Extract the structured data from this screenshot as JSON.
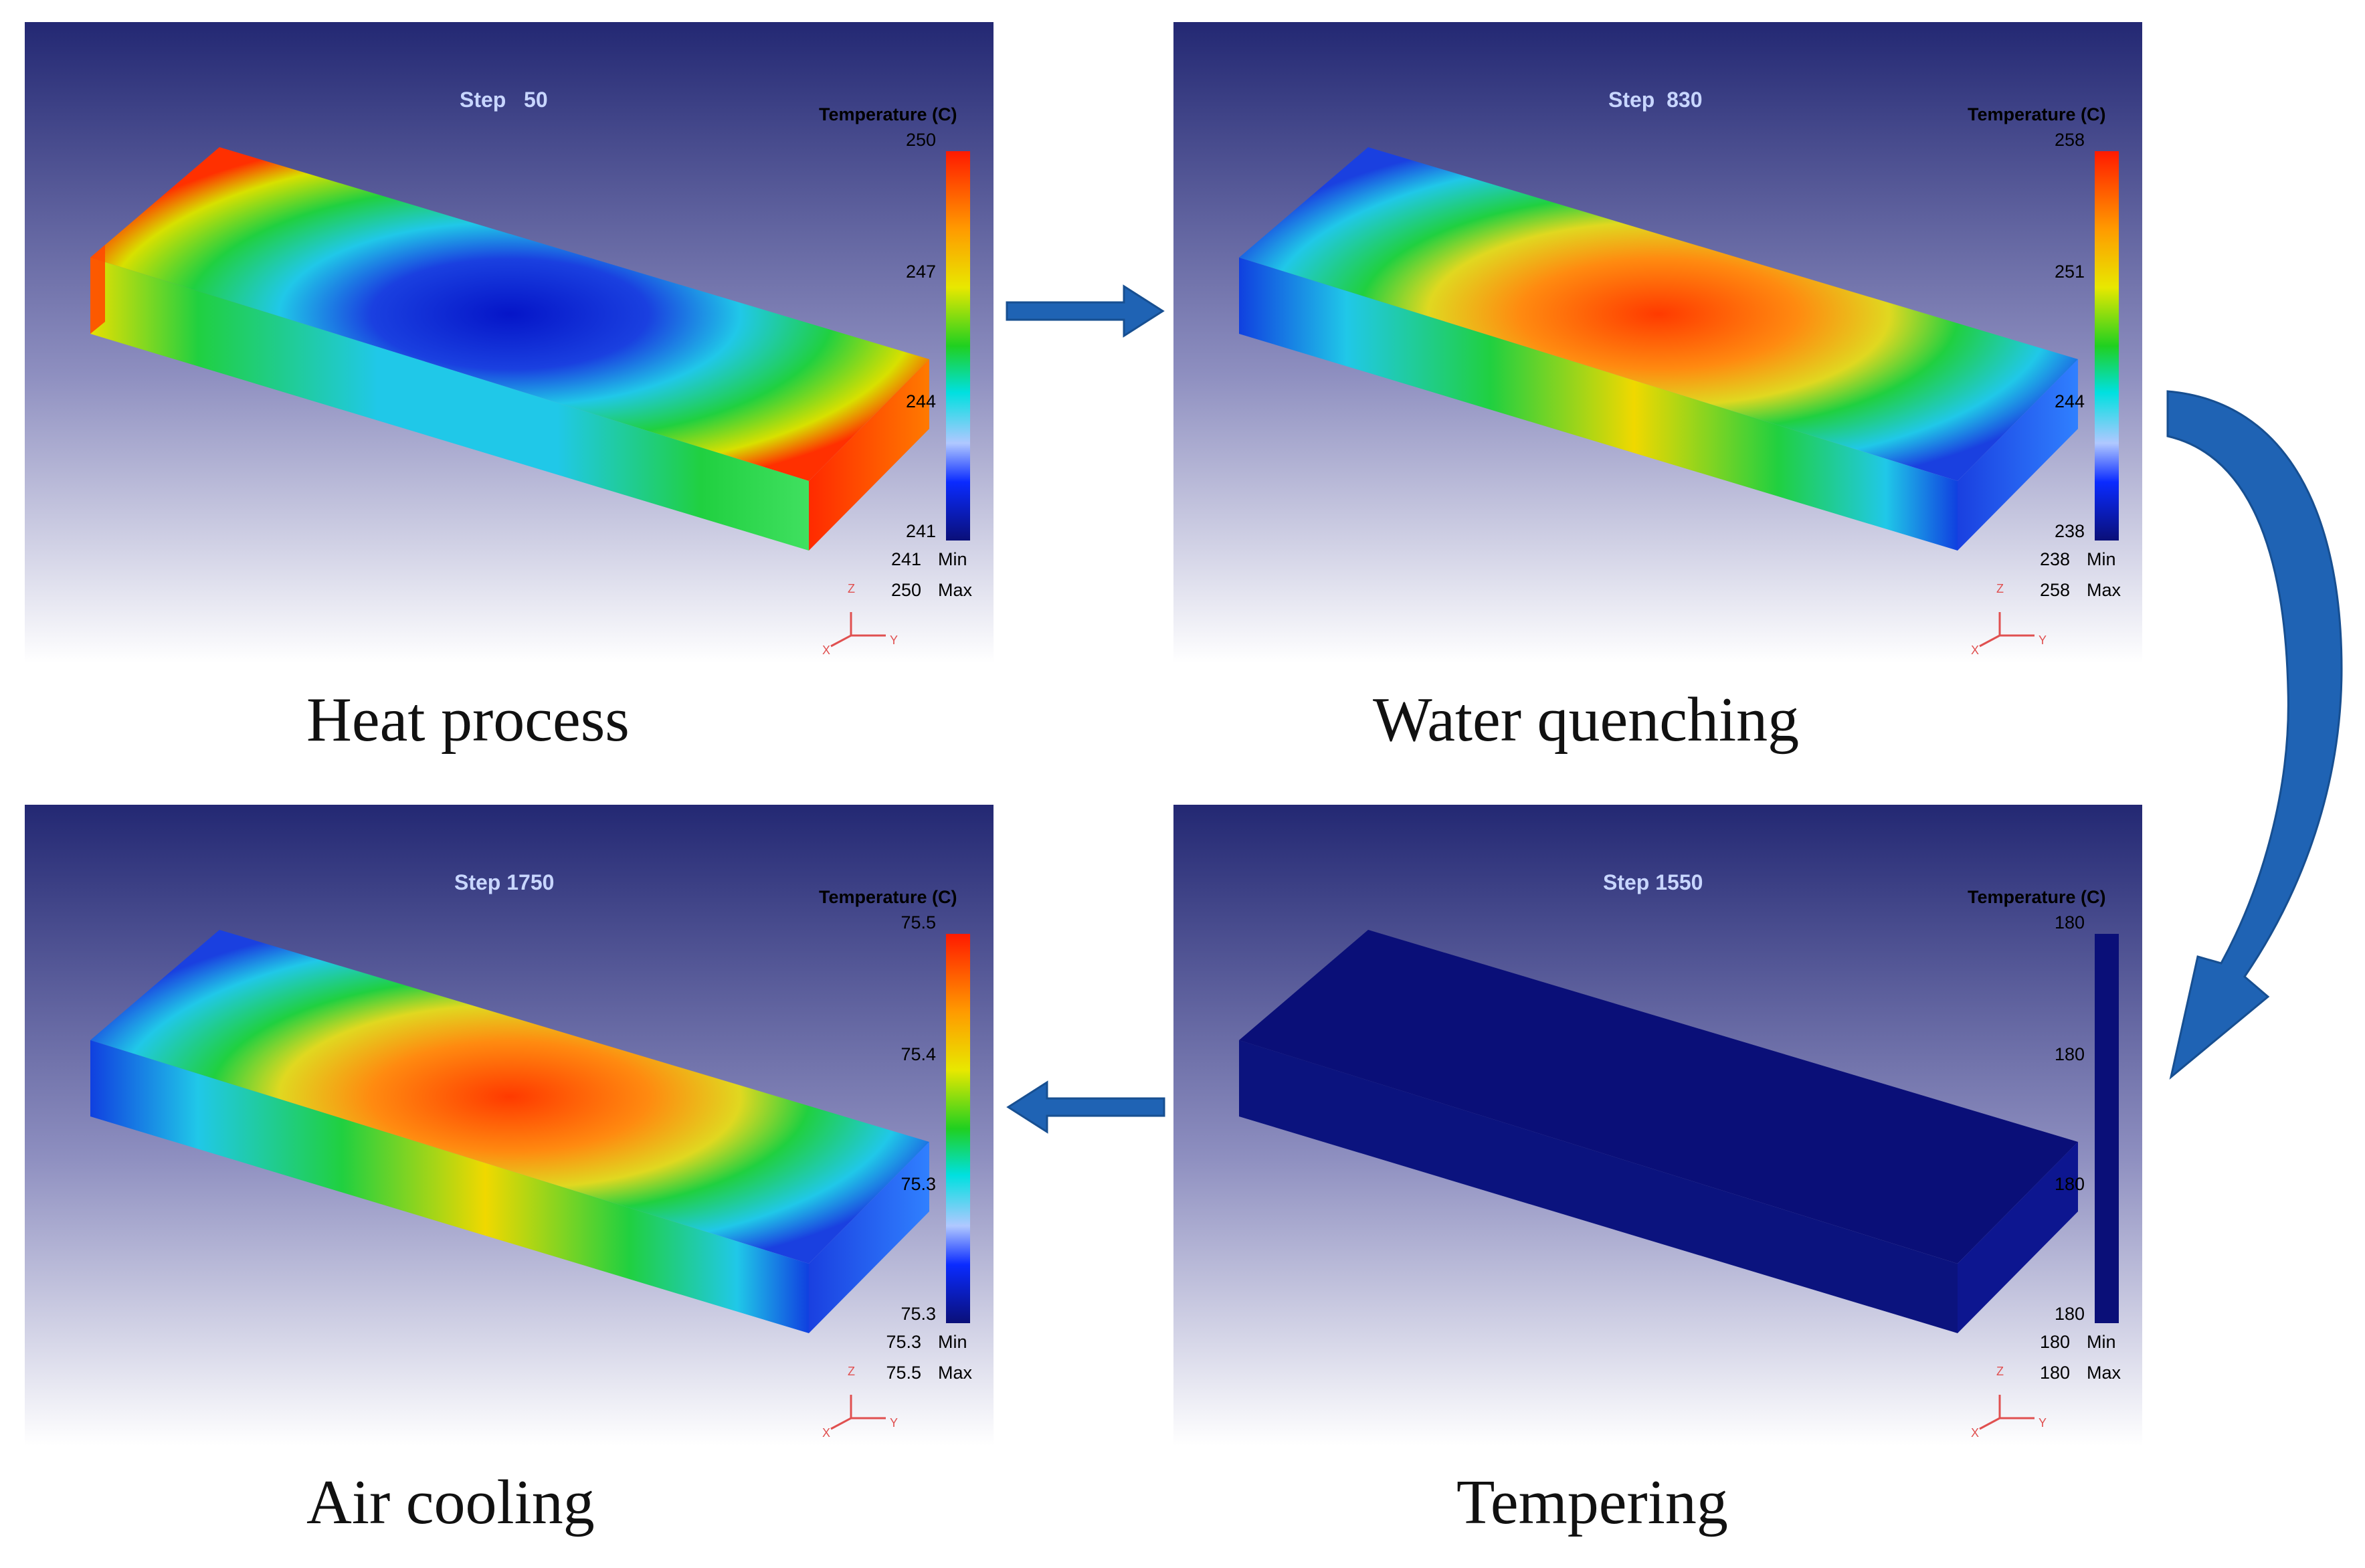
{
  "panels": [
    {
      "id": "heat",
      "step": "Step   50",
      "legend_title": "Temperature (C)",
      "ticks": [
        "250",
        "247",
        "244",
        "241"
      ],
      "min_value": "241",
      "max_value": "250",
      "min_label": "Min",
      "max_label": "Max",
      "caption": "Heat process",
      "field": "cold-center"
    },
    {
      "id": "quench",
      "step": "Step  830",
      "legend_title": "Temperature (C)",
      "ticks": [
        "258",
        "251",
        "244",
        "238"
      ],
      "min_value": "238",
      "max_value": "258",
      "min_label": "Min",
      "max_label": "Max",
      "caption": "Water quenching",
      "field": "hot-center"
    },
    {
      "id": "air",
      "step": "Step 1750",
      "legend_title": "Temperature (C)",
      "ticks": [
        "75.5",
        "75.4",
        "75.3",
        "75.3"
      ],
      "min_value": "75.3",
      "max_value": "75.5",
      "min_label": "Min",
      "max_label": "Max",
      "caption": "Air cooling",
      "field": "hot-center"
    },
    {
      "id": "temper",
      "step": "Step 1550",
      "legend_title": "Temperature (C)",
      "ticks": [
        "180",
        "180",
        "180",
        "180"
      ],
      "min_value": "180",
      "max_value": "180",
      "min_label": "Min",
      "max_label": "Max",
      "caption": "Tempering",
      "field": "uniform"
    }
  ],
  "axis_labels": {
    "z": "Z",
    "x": "X",
    "y": "Y"
  },
  "colors": {
    "bg_top": "#232873",
    "bg_bottom": "#ffffff",
    "arrow": "#1f63b4",
    "uniform": "#0a0f78"
  },
  "flow": [
    "heat",
    "quench",
    "temper",
    "air"
  ]
}
